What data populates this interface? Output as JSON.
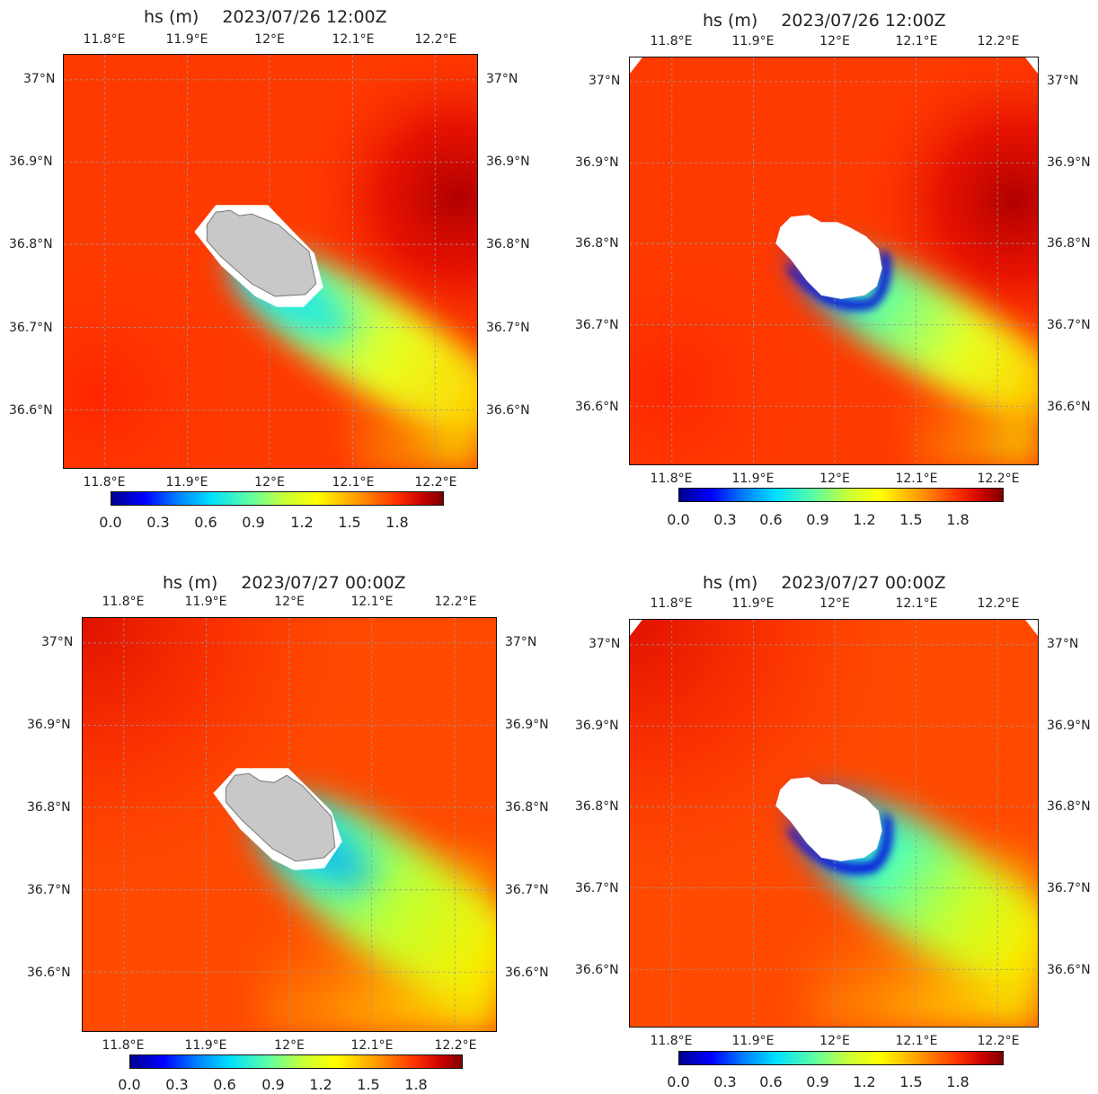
{
  "panels": [
    {
      "id": "p1",
      "variable": "hs (m)",
      "time": "2023/07/26 12:00Z",
      "island": "grey",
      "lon_labels": [
        "11.8°E",
        "11.9°E",
        "12°E",
        "12.1°E",
        "12.2°E"
      ],
      "lat_labels": [
        "37°N",
        "36.9°N",
        "36.8°N",
        "36.7°N",
        "36.6°N"
      ]
    },
    {
      "id": "p2",
      "variable": "hs (m)",
      "time": "2023/07/26 12:00Z",
      "island": "white",
      "lon_labels": [
        "11.8°E",
        "11.9°E",
        "12°E",
        "12.1°E",
        "12.2°E"
      ],
      "lat_labels": [
        "37°N",
        "36.9°N",
        "36.8°N",
        "36.7°N",
        "36.6°N"
      ]
    },
    {
      "id": "p3",
      "variable": "hs (m)",
      "time": "2023/07/27 00:00Z",
      "island": "grey",
      "lon_labels": [
        "11.8°E",
        "11.9°E",
        "12°E",
        "12.1°E",
        "12.2°E"
      ],
      "lat_labels": [
        "37°N",
        "36.9°N",
        "36.8°N",
        "36.7°N",
        "36.6°N"
      ]
    },
    {
      "id": "p4",
      "variable": "hs (m)",
      "time": "2023/07/27 00:00Z",
      "island": "white",
      "lon_labels": [
        "11.8°E",
        "11.9°E",
        "12°E",
        "12.1°E",
        "12.2°E"
      ],
      "lat_labels": [
        "37°N",
        "36.9°N",
        "36.8°N",
        "36.7°N",
        "36.6°N"
      ]
    }
  ],
  "colorbar": {
    "ticks": [
      "0.0",
      "0.3",
      "0.6",
      "0.9",
      "1.2",
      "1.5",
      "1.8"
    ],
    "range": [
      0,
      2.04
    ],
    "colormap": "jet"
  },
  "colors": {
    "background_red": "#ff3a00",
    "peak_darkred": "#c00000",
    "lee_yellow": "#f2f200",
    "land_grey": "#c8c8c8"
  }
}
